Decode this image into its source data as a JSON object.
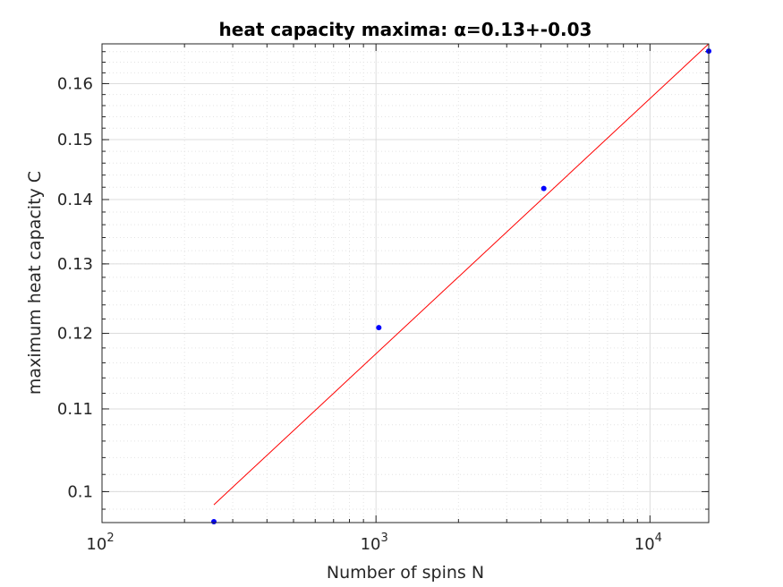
{
  "chart_data": {
    "type": "scatter",
    "title": "heat capacity maxima: α=0.13+-0.03",
    "xlabel": "Number of spins N",
    "ylabel": "maximum heat capacity C",
    "xscale": "log",
    "yscale": "log",
    "xlim": [
      100,
      16384
    ],
    "ylim": [
      0.0965,
      0.1675
    ],
    "grid": true,
    "minor_grid": true,
    "x_ticks": [
      {
        "base": "10",
        "exp": "2",
        "value": 100
      },
      {
        "base": "10",
        "exp": "3",
        "value": 1000
      },
      {
        "base": "10",
        "exp": "4",
        "value": 10000
      }
    ],
    "y_ticks": [
      {
        "label": "0.1",
        "value": 0.1
      },
      {
        "label": "0.11",
        "value": 0.11
      },
      {
        "label": "0.12",
        "value": 0.12
      },
      {
        "label": "0.13",
        "value": 0.13
      },
      {
        "label": "0.14",
        "value": 0.14
      },
      {
        "label": "0.15",
        "value": 0.15
      },
      {
        "label": "0.16",
        "value": 0.16
      }
    ],
    "series": [
      {
        "kind": "points",
        "color": "#0000ff",
        "x": [
          256,
          1024,
          4096,
          16384
        ],
        "y": [
          0.0966,
          0.1208,
          0.1418,
          0.1661
        ]
      },
      {
        "kind": "fit-line",
        "color": "#ff0000",
        "x": [
          256,
          16384
        ],
        "y": [
          0.0985,
          0.1675
        ]
      }
    ]
  }
}
